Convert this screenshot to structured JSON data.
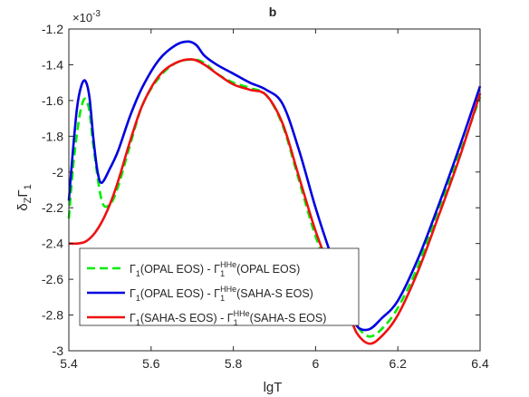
{
  "chart_data": {
    "type": "line",
    "title": "b",
    "xlabel": "lgT",
    "ylabel_main": "δ",
    "ylabel_sub1": "Z",
    "ylabel_gamma": "Γ",
    "ylabel_sub2": "1",
    "y_multiplier": "×10",
    "y_multiplier_exp": "-3",
    "xlim": [
      5.4,
      6.4
    ],
    "ylim": [
      -3.0,
      -1.2
    ],
    "xticks": [
      5.4,
      5.6,
      5.8,
      6.0,
      6.2,
      6.4
    ],
    "xtick_labels": [
      "5.4",
      "5.6",
      "5.8",
      "6",
      "6.2",
      "6.4"
    ],
    "yticks": [
      -3.0,
      -2.8,
      -2.6,
      -2.4,
      -2.2,
      -2.0,
      -1.8,
      -1.6,
      -1.4,
      -1.2
    ],
    "ytick_labels": [
      "-3",
      "-2.8",
      "-2.6",
      "-2.4",
      "-2.2",
      "-2",
      "-1.8",
      "-1.6",
      "-1.4",
      "-1.2"
    ],
    "grid": false,
    "legend_position": "bottom-left",
    "series": [
      {
        "legend": {
          "a": "(OPAL EOS) - ",
          "sup": "HHe",
          "b": "(OPAL EOS)"
        },
        "color": "#00ee00",
        "dash": "dashed",
        "x": [
          5.4,
          5.41,
          5.42,
          5.43,
          5.44,
          5.45,
          5.46,
          5.48,
          5.5,
          5.52,
          5.55,
          5.58,
          5.62,
          5.66,
          5.7,
          5.73,
          5.76,
          5.8,
          5.84,
          5.88,
          5.92,
          5.96,
          6.0,
          6.04,
          6.08,
          6.1,
          6.13,
          6.16,
          6.2,
          6.25,
          6.3,
          6.35,
          6.4
        ],
        "y": [
          -2.26,
          -1.98,
          -1.78,
          -1.64,
          -1.59,
          -1.66,
          -1.86,
          -2.16,
          -2.18,
          -2.08,
          -1.84,
          -1.62,
          -1.47,
          -1.39,
          -1.37,
          -1.39,
          -1.45,
          -1.5,
          -1.53,
          -1.57,
          -1.74,
          -2.05,
          -2.36,
          -2.58,
          -2.76,
          -2.86,
          -2.92,
          -2.88,
          -2.76,
          -2.52,
          -2.2,
          -1.9,
          -1.58
        ]
      },
      {
        "legend": {
          "a": "(OPAL EOS) - ",
          "sup": "HHe",
          "b": "(SAHA-S EOS)"
        },
        "color": "#0000e0",
        "dash": "solid",
        "x": [
          5.4,
          5.41,
          5.42,
          5.43,
          5.44,
          5.45,
          5.46,
          5.47,
          5.48,
          5.5,
          5.52,
          5.55,
          5.58,
          5.62,
          5.66,
          5.69,
          5.71,
          5.73,
          5.76,
          5.8,
          5.84,
          5.88,
          5.92,
          5.96,
          6.0,
          6.04,
          6.08,
          6.1,
          6.13,
          6.16,
          6.2,
          6.25,
          6.3,
          6.35,
          6.4
        ],
        "y": [
          -2.16,
          -1.88,
          -1.64,
          -1.52,
          -1.49,
          -1.58,
          -1.82,
          -2.0,
          -2.06,
          -1.98,
          -1.88,
          -1.68,
          -1.52,
          -1.37,
          -1.29,
          -1.27,
          -1.29,
          -1.35,
          -1.4,
          -1.45,
          -1.5,
          -1.54,
          -1.62,
          -1.88,
          -2.2,
          -2.48,
          -2.72,
          -2.86,
          -2.88,
          -2.82,
          -2.72,
          -2.48,
          -2.18,
          -1.86,
          -1.52
        ]
      },
      {
        "legend": {
          "a": "(SAHA-S EOS) - ",
          "sup": "HHe",
          "b": "(SAHA-S EOS)"
        },
        "color": "#ee1111",
        "dash": "solid",
        "x": [
          5.4,
          5.42,
          5.44,
          5.46,
          5.48,
          5.5,
          5.52,
          5.55,
          5.58,
          5.62,
          5.66,
          5.7,
          5.73,
          5.76,
          5.8,
          5.84,
          5.88,
          5.92,
          5.96,
          6.0,
          6.04,
          6.08,
          6.1,
          6.13,
          6.16,
          6.2,
          6.25,
          6.3,
          6.35,
          6.4
        ],
        "y": [
          -2.4,
          -2.4,
          -2.39,
          -2.35,
          -2.28,
          -2.18,
          -2.05,
          -1.82,
          -1.62,
          -1.46,
          -1.39,
          -1.37,
          -1.4,
          -1.45,
          -1.51,
          -1.54,
          -1.57,
          -1.73,
          -2.03,
          -2.33,
          -2.57,
          -2.78,
          -2.9,
          -2.96,
          -2.92,
          -2.8,
          -2.55,
          -2.24,
          -1.92,
          -1.56
        ]
      }
    ]
  }
}
